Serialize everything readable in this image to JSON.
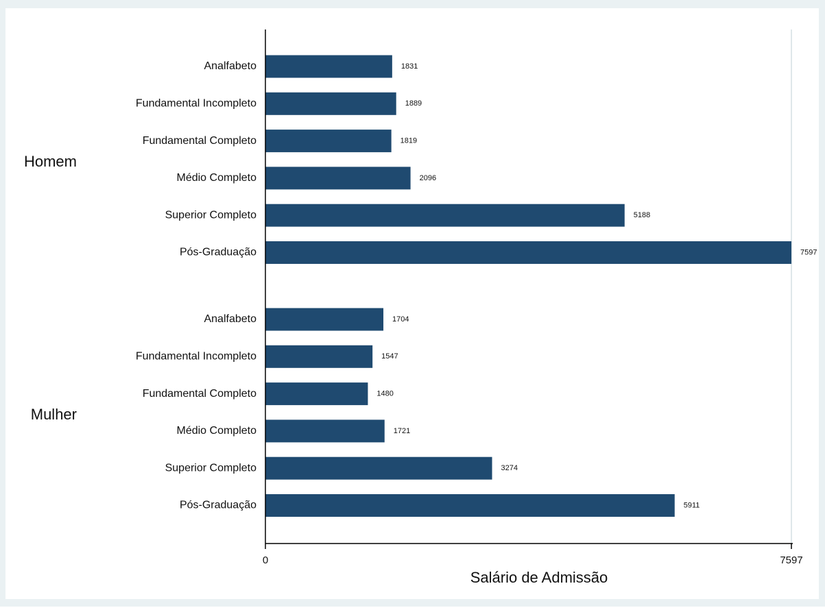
{
  "chart_data": {
    "type": "bar",
    "orientation": "horizontal",
    "xlabel": "Salário de Admissão",
    "xlim": [
      0,
      7597
    ],
    "xticks": [
      "0",
      "7597"
    ],
    "grid": "vertical line at max tick",
    "legend": "none",
    "bar_color": "#1f4a70",
    "plot_background": "#ffffff",
    "outer_background": "#eaf1f3",
    "groups": [
      {
        "name": "Homem",
        "categories": [
          "Analfabeto",
          "Fundamental Incompleto",
          "Fundamental Completo",
          "Médio Completo",
          "Superior Completo",
          "Pós-Graduação"
        ],
        "values": [
          1831,
          1889,
          1819,
          2096,
          5188,
          7597
        ]
      },
      {
        "name": "Mulher",
        "categories": [
          "Analfabeto",
          "Fundamental Incompleto",
          "Fundamental Completo",
          "Médio Completo",
          "Superior Completo",
          "Pós-Graduação"
        ],
        "values": [
          1704,
          1547,
          1480,
          1721,
          3274,
          5911
        ]
      }
    ]
  }
}
